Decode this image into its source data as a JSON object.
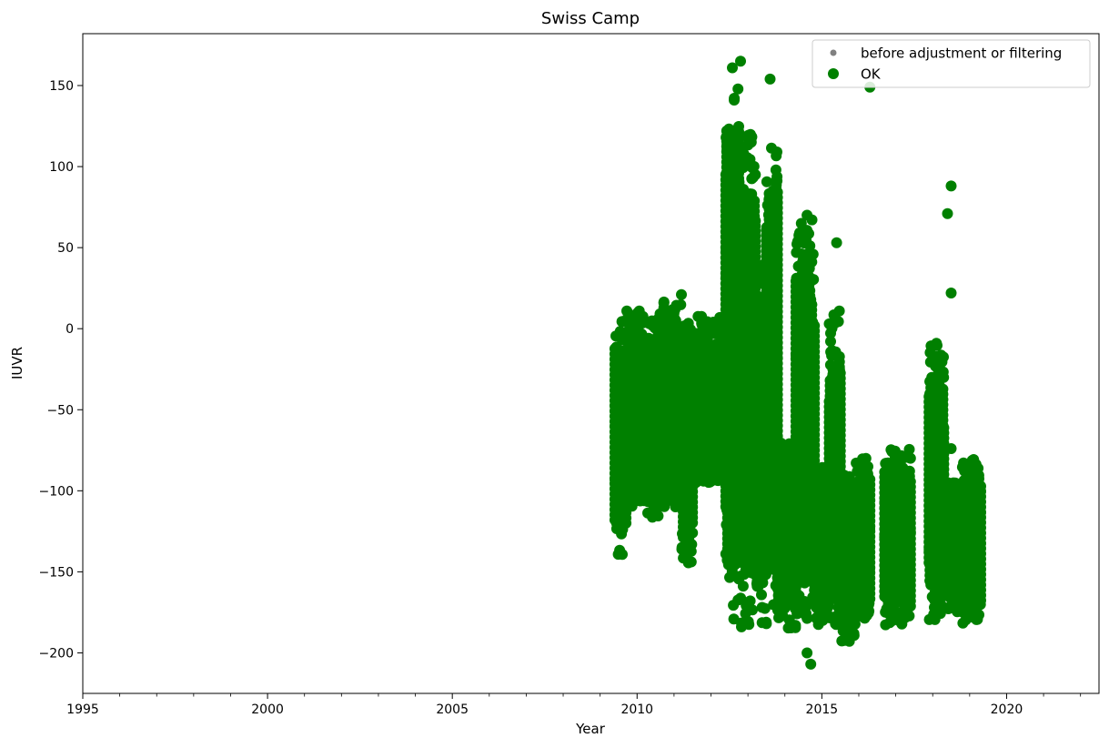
{
  "chart_data": {
    "type": "scatter",
    "title": "Swiss Camp",
    "xlabel": "Year",
    "ylabel": "IUVR",
    "xlim": [
      1995,
      2022.5
    ],
    "ylim": [
      -225,
      182
    ],
    "xticks": [
      1995,
      2000,
      2005,
      2010,
      2015,
      2020
    ],
    "yticks": [
      -200,
      -150,
      -100,
      -50,
      0,
      50,
      100,
      150
    ],
    "xtick_labels": [
      "1995",
      "2000",
      "2005",
      "2010",
      "2015",
      "2020"
    ],
    "ytick_labels": [
      "−200",
      "−150",
      "−100",
      "−50",
      "0",
      "50",
      "100",
      "150"
    ],
    "grid": false,
    "legend_position": "top-right",
    "colors": {
      "before": "#808080",
      "ok": "#008000"
    },
    "series": [
      {
        "name": "before adjustment or filtering",
        "marker": "small-dot",
        "color": "#808080",
        "points": []
      },
      {
        "name": "OK",
        "marker": "dot",
        "color": "#008000",
        "bands": [
          {
            "x": [
              2009.4,
              2009.7
            ],
            "y": [
              -140,
              5
            ]
          },
          {
            "x": [
              2009.7,
              2010.2
            ],
            "y": [
              -110,
              12
            ]
          },
          {
            "x": [
              2010.2,
              2010.6
            ],
            "y": [
              -117,
              6
            ]
          },
          {
            "x": [
              2010.6,
              2011.2
            ],
            "y": [
              -110,
              20
            ]
          },
          {
            "x": [
              2011.2,
              2011.5
            ],
            "y": [
              -145,
              8
            ]
          },
          {
            "x": [
              2011.5,
              2012.4
            ],
            "y": [
              -95,
              8
            ]
          },
          {
            "x": [
              2012.4,
              2012.8
            ],
            "y": [
              -185,
              162
            ]
          },
          {
            "x": [
              2012.8,
              2013.2
            ],
            "y": [
              -185,
              120
            ]
          },
          {
            "x": [
              2013.2,
              2013.5
            ],
            "y": [
              -182,
              40
            ]
          },
          {
            "x": [
              2013.5,
              2013.8
            ],
            "y": [
              -175,
              118
            ]
          },
          {
            "x": [
              2013.8,
              2014.3
            ],
            "y": [
              -185,
              -70
            ]
          },
          {
            "x": [
              2014.3,
              2014.8
            ],
            "y": [
              -180,
              68
            ]
          },
          {
            "x": [
              2014.8,
              2015.2
            ],
            "y": [
              -183,
              -85
            ]
          },
          {
            "x": [
              2015.2,
              2015.5
            ],
            "y": [
              -188,
              12
            ]
          },
          {
            "x": [
              2015.5,
              2015.9
            ],
            "y": [
              -193,
              -90
            ]
          },
          {
            "x": [
              2015.9,
              2016.3
            ],
            "y": [
              -180,
              -80
            ]
          },
          {
            "x": [
              2016.7,
              2017.4
            ],
            "y": [
              -183,
              -73
            ]
          },
          {
            "x": [
              2017.9,
              2018.3
            ],
            "y": [
              -180,
              -10
            ]
          },
          {
            "x": [
              2018.4,
              2018.8
            ],
            "y": [
              -175,
              -95
            ]
          },
          {
            "x": [
              2018.8,
              2019.3
            ],
            "y": [
              -182,
              -80
            ]
          }
        ],
        "isolated": [
          [
            2012.8,
            165
          ],
          [
            2013.2,
            95
          ],
          [
            2013.6,
            154
          ],
          [
            2016.3,
            149
          ],
          [
            2018.5,
            88
          ],
          [
            2018.4,
            71
          ],
          [
            2018.5,
            22
          ],
          [
            2015.4,
            53
          ],
          [
            2014.6,
            -200
          ],
          [
            2014.7,
            -207
          ],
          [
            2011.2,
            21
          ],
          [
            2018.1,
            -9
          ],
          [
            2018.5,
            -74
          ],
          [
            2014.4,
            -42
          ],
          [
            2014.6,
            70
          ],
          [
            2015.2,
            3
          ],
          [
            2011.5,
            -126
          ],
          [
            2013.5,
            -182
          ]
        ]
      }
    ]
  }
}
